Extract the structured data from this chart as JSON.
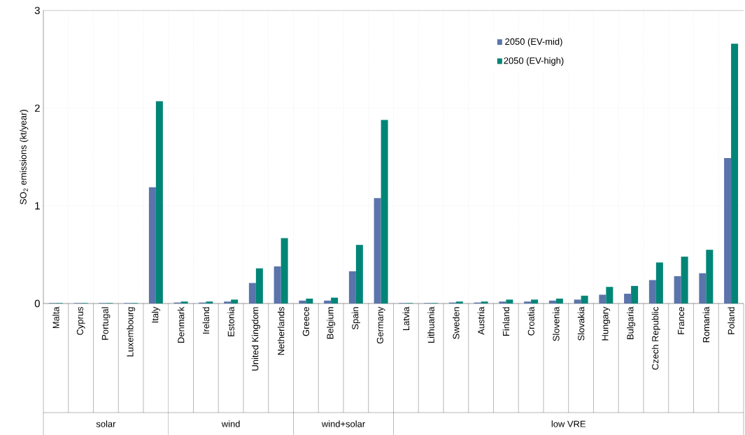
{
  "chart_data": {
    "type": "bar",
    "ylabel": "SO$_{2}$ emissions (kt/year)",
    "categories": [
      "Malta",
      "Cyprus",
      "Portugal",
      "Luxembourg",
      "Italy",
      "Denmark",
      "Ireland",
      "Estonia",
      "United Kingdom",
      "Netherlands",
      "Greece",
      "Belgium",
      "Spain",
      "Germany",
      "Latvia",
      "Lithuania",
      "Sweden",
      "Austria",
      "Finland",
      "Croatia",
      "Slovenia",
      "Slovakia",
      "Hungary",
      "Bulgaria",
      "Czech Republic",
      "France",
      "Romania",
      "Poland"
    ],
    "series": [
      {
        "name": "2050 (EV-mid)",
        "color": "#5b74ab",
        "values": [
          0.005,
          0.005,
          0.005,
          0.005,
          1.19,
          0.01,
          0.01,
          0.02,
          0.21,
          0.38,
          0.03,
          0.03,
          0.33,
          1.08,
          0.005,
          0.005,
          0.01,
          0.01,
          0.02,
          0.02,
          0.03,
          0.04,
          0.09,
          0.1,
          0.24,
          0.28,
          0.31,
          1.49
        ]
      },
      {
        "name": "2050 (EV-high)",
        "color": "#008577",
        "values": [
          0.005,
          0.005,
          0.005,
          0.005,
          2.07,
          0.02,
          0.02,
          0.04,
          0.36,
          0.67,
          0.05,
          0.06,
          0.6,
          1.88,
          0.005,
          0.005,
          0.02,
          0.02,
          0.04,
          0.04,
          0.05,
          0.08,
          0.17,
          0.18,
          0.42,
          0.48,
          0.55,
          2.66
        ]
      }
    ],
    "annotations": [
      "solar",
      "wind",
      "wind+solar",
      "low VRE"
    ],
    "ylim": [
      0,
      3
    ],
    "yticks": [
      0,
      1,
      2,
      3
    ],
    "grid": true,
    "legend": "top right"
  }
}
